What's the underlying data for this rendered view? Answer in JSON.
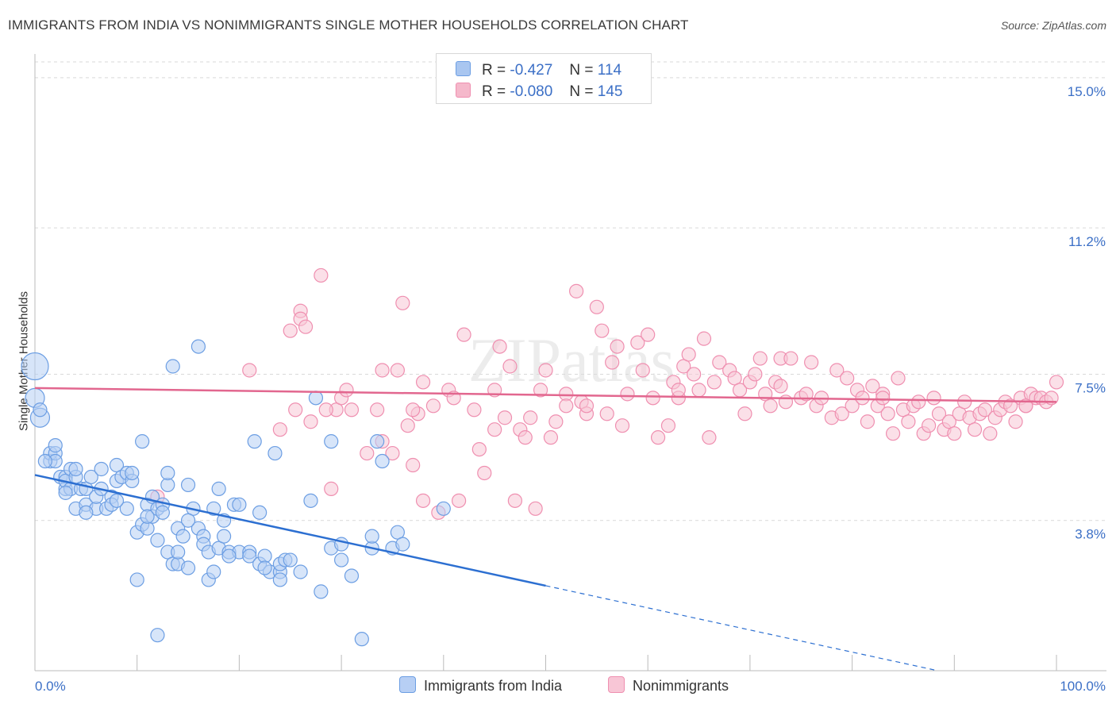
{
  "title": "IMMIGRANTS FROM INDIA VS NONIMMIGRANTS SINGLE MOTHER HOUSEHOLDS CORRELATION CHART",
  "source": "Source: ZipAtlas.com",
  "watermark": "ZIPatlas",
  "legend_stats": [
    {
      "r_label": "R =",
      "r_value": "-0.427",
      "n_label": "N =",
      "n_value": "114",
      "color": "#a9c6f0"
    },
    {
      "r_label": "R =",
      "r_value": "-0.080",
      "n_label": "N =",
      "n_value": "145",
      "color": "#f5b8cb"
    }
  ],
  "colors": {
    "india": "#6c9ee3",
    "india_fill": "#b7cff4",
    "india_line": "#2c6fd1",
    "nonimm": "#ef8fb0",
    "nonimm_fill": "#f8c6d6",
    "nonimm_line": "#e2678f",
    "axis_text": "#3b6fc6",
    "grid": "#d9d9d9"
  },
  "chart_data": {
    "type": "scatter",
    "title": "IMMIGRANTS FROM INDIA VS NONIMMIGRANTS SINGLE MOTHER HOUSEHOLDS CORRELATION CHART",
    "xlabel": "",
    "ylabel": "Single Mother Households",
    "x_tick_labels": [
      "0.0%",
      "100.0%"
    ],
    "y_tick_labels": [
      "3.8%",
      "7.5%",
      "11.2%",
      "15.0%"
    ],
    "y_ticks": [
      3.8,
      7.5,
      11.2,
      15.0
    ],
    "xlim": [
      0,
      100
    ],
    "ylim": [
      0,
      15.4
    ],
    "grid": "horizontal dashed",
    "legend_position": "bottom-center",
    "series": [
      {
        "name": "Immigrants from India",
        "trend": {
          "x0": 0,
          "y0": 4.95,
          "x1": 50,
          "y1": 2.15,
          "dashed_to_x": 100,
          "dashed_to_y": -0.65
        },
        "points": [
          [
            0,
            7.7
          ],
          [
            0,
            6.9
          ],
          [
            0.5,
            6.4
          ],
          [
            0.5,
            6.6
          ],
          [
            1.5,
            5.3
          ],
          [
            1.5,
            5.5
          ],
          [
            2,
            5.5
          ],
          [
            2,
            5.7
          ],
          [
            2,
            5.3
          ],
          [
            2.5,
            4.9
          ],
          [
            3,
            4.9
          ],
          [
            3,
            4.6
          ],
          [
            3,
            4.8
          ],
          [
            3.5,
            5.1
          ],
          [
            3.5,
            4.6
          ],
          [
            4,
            4.9
          ],
          [
            4,
            5.1
          ],
          [
            4,
            4.1
          ],
          [
            4.5,
            4.6
          ],
          [
            5,
            4.2
          ],
          [
            5,
            4.6
          ],
          [
            5.5,
            4.9
          ],
          [
            6,
            4.1
          ],
          [
            6,
            4.4
          ],
          [
            6.5,
            4.6
          ],
          [
            6.5,
            5.1
          ],
          [
            7,
            4.1
          ],
          [
            7.5,
            4.4
          ],
          [
            7.5,
            4.2
          ],
          [
            8,
            4.8
          ],
          [
            8,
            5.2
          ],
          [
            8.5,
            4.9
          ],
          [
            9,
            4.1
          ],
          [
            9,
            5.0
          ],
          [
            9.5,
            4.8
          ],
          [
            9.5,
            5.0
          ],
          [
            10,
            3.5
          ],
          [
            10,
            2.3
          ],
          [
            10.5,
            5.8
          ],
          [
            10.5,
            3.7
          ],
          [
            11,
            3.6
          ],
          [
            11,
            4.2
          ],
          [
            11.5,
            3.9
          ],
          [
            11.5,
            4.4
          ],
          [
            12,
            4.1
          ],
          [
            12,
            3.3
          ],
          [
            12,
            0.9
          ],
          [
            12.5,
            4.2
          ],
          [
            12.5,
            4.0
          ],
          [
            13,
            4.7
          ],
          [
            13,
            5.0
          ],
          [
            13,
            3.0
          ],
          [
            13.5,
            7.7
          ],
          [
            13.5,
            2.7
          ],
          [
            14,
            2.7
          ],
          [
            14,
            3.6
          ],
          [
            14,
            3.0
          ],
          [
            14.5,
            3.4
          ],
          [
            15,
            4.7
          ],
          [
            15,
            2.6
          ],
          [
            15.5,
            4.1
          ],
          [
            16,
            8.2
          ],
          [
            16,
            3.6
          ],
          [
            16.5,
            3.4
          ],
          [
            16.5,
            3.2
          ],
          [
            17,
            3.0
          ],
          [
            17,
            2.3
          ],
          [
            17.5,
            2.5
          ],
          [
            17.5,
            4.1
          ],
          [
            18,
            4.6
          ],
          [
            18,
            3.1
          ],
          [
            18.5,
            3.8
          ],
          [
            18.5,
            3.4
          ],
          [
            19,
            3.0
          ],
          [
            19.5,
            4.2
          ],
          [
            20,
            3.0
          ],
          [
            20,
            4.2
          ],
          [
            21,
            3.0
          ],
          [
            21,
            2.9
          ],
          [
            21.5,
            5.8
          ],
          [
            22,
            4.0
          ],
          [
            22,
            2.7
          ],
          [
            22.5,
            2.9
          ],
          [
            23,
            2.5
          ],
          [
            23.5,
            5.5
          ],
          [
            24,
            2.5
          ],
          [
            24,
            2.7
          ],
          [
            24,
            2.3
          ],
          [
            24.5,
            2.8
          ],
          [
            25,
            2.8
          ],
          [
            27,
            4.3
          ],
          [
            27.5,
            6.9
          ],
          [
            28,
            2.0
          ],
          [
            29,
            5.8
          ],
          [
            29,
            3.1
          ],
          [
            30,
            3.2
          ],
          [
            30,
            2.8
          ],
          [
            31,
            2.4
          ],
          [
            32,
            0.8
          ],
          [
            33,
            3.1
          ],
          [
            33,
            3.4
          ],
          [
            33.5,
            5.8
          ],
          [
            34,
            5.3
          ],
          [
            35,
            3.1
          ],
          [
            35.5,
            3.5
          ],
          [
            36,
            3.2
          ],
          [
            40,
            4.1
          ],
          [
            1,
            5.3
          ],
          [
            3,
            4.5
          ],
          [
            5,
            4.0
          ],
          [
            8,
            4.3
          ],
          [
            11,
            3.9
          ],
          [
            15,
            3.8
          ],
          [
            19,
            2.9
          ],
          [
            22.5,
            2.6
          ],
          [
            26,
            2.5
          ]
        ]
      },
      {
        "name": "Nonimmigrants",
        "trend": {
          "x0": 0,
          "y0": 7.15,
          "x1": 100,
          "y1": 6.8
        },
        "points": [
          [
            12,
            4.4
          ],
          [
            21,
            7.6
          ],
          [
            24,
            6.1
          ],
          [
            25,
            8.6
          ],
          [
            25.5,
            6.6
          ],
          [
            26,
            9.1
          ],
          [
            26,
            8.9
          ],
          [
            26.5,
            8.7
          ],
          [
            27,
            6.3
          ],
          [
            28,
            10.0
          ],
          [
            29,
            4.6
          ],
          [
            29.5,
            6.6
          ],
          [
            30,
            6.9
          ],
          [
            30.5,
            7.1
          ],
          [
            31,
            6.6
          ],
          [
            32.5,
            5.5
          ],
          [
            33.5,
            6.6
          ],
          [
            34,
            5.8
          ],
          [
            34,
            7.6
          ],
          [
            35,
            5.5
          ],
          [
            35.5,
            7.6
          ],
          [
            36,
            9.3
          ],
          [
            36.5,
            6.2
          ],
          [
            37,
            5.2
          ],
          [
            37.5,
            6.5
          ],
          [
            38,
            4.3
          ],
          [
            38,
            7.3
          ],
          [
            39,
            6.7
          ],
          [
            39.5,
            4.0
          ],
          [
            40.5,
            7.1
          ],
          [
            41,
            6.9
          ],
          [
            41.5,
            4.3
          ],
          [
            42,
            8.5
          ],
          [
            43,
            6.6
          ],
          [
            43.5,
            5.6
          ],
          [
            44,
            5.0
          ],
          [
            45,
            6.1
          ],
          [
            45.5,
            8.2
          ],
          [
            46,
            6.4
          ],
          [
            46.5,
            7.7
          ],
          [
            47,
            4.3
          ],
          [
            47.5,
            6.1
          ],
          [
            48,
            5.9
          ],
          [
            48.5,
            6.4
          ],
          [
            49,
            4.1
          ],
          [
            49.5,
            7.1
          ],
          [
            50,
            7.6
          ],
          [
            50.5,
            5.9
          ],
          [
            51,
            6.3
          ],
          [
            52,
            7.0
          ],
          [
            52,
            6.7
          ],
          [
            53,
            9.6
          ],
          [
            53.5,
            6.8
          ],
          [
            54,
            6.5
          ],
          [
            55,
            9.2
          ],
          [
            55.5,
            8.6
          ],
          [
            56,
            6.5
          ],
          [
            56.5,
            7.8
          ],
          [
            57,
            8.2
          ],
          [
            57.5,
            6.2
          ],
          [
            58,
            7.0
          ],
          [
            59,
            8.3
          ],
          [
            59.5,
            7.6
          ],
          [
            60,
            8.5
          ],
          [
            60.5,
            6.9
          ],
          [
            61,
            5.9
          ],
          [
            62,
            6.2
          ],
          [
            62.5,
            7.3
          ],
          [
            63,
            6.9
          ],
          [
            63.5,
            7.7
          ],
          [
            64,
            8.0
          ],
          [
            64.5,
            7.5
          ],
          [
            65,
            7.1
          ],
          [
            65.5,
            8.4
          ],
          [
            66,
            5.9
          ],
          [
            66.5,
            7.3
          ],
          [
            67,
            7.8
          ],
          [
            68,
            7.6
          ],
          [
            68.5,
            7.4
          ],
          [
            69,
            7.1
          ],
          [
            69.5,
            6.5
          ],
          [
            70,
            7.3
          ],
          [
            70.5,
            7.5
          ],
          [
            71,
            7.9
          ],
          [
            71.5,
            7.0
          ],
          [
            72,
            6.7
          ],
          [
            72.5,
            7.3
          ],
          [
            73,
            7.9
          ],
          [
            73.5,
            6.8
          ],
          [
            74,
            7.9
          ],
          [
            75,
            6.9
          ],
          [
            75.5,
            7.0
          ],
          [
            76,
            7.8
          ],
          [
            76.5,
            6.7
          ],
          [
            77,
            6.9
          ],
          [
            78,
            6.4
          ],
          [
            78.5,
            7.6
          ],
          [
            79,
            6.5
          ],
          [
            79.5,
            7.4
          ],
          [
            80,
            6.7
          ],
          [
            80.5,
            7.1
          ],
          [
            81,
            6.9
          ],
          [
            81.5,
            6.3
          ],
          [
            82,
            7.2
          ],
          [
            82.5,
            6.7
          ],
          [
            83,
            7.0
          ],
          [
            83.5,
            6.5
          ],
          [
            84,
            6.0
          ],
          [
            84.5,
            7.4
          ],
          [
            85,
            6.6
          ],
          [
            85.5,
            6.3
          ],
          [
            86,
            6.7
          ],
          [
            86.5,
            6.8
          ],
          [
            87,
            6.0
          ],
          [
            87.5,
            6.2
          ],
          [
            88,
            6.9
          ],
          [
            88.5,
            6.5
          ],
          [
            89,
            6.1
          ],
          [
            89.5,
            6.3
          ],
          [
            90,
            6.0
          ],
          [
            90.5,
            6.5
          ],
          [
            91,
            6.8
          ],
          [
            91.5,
            6.4
          ],
          [
            92,
            6.1
          ],
          [
            92.5,
            6.5
          ],
          [
            93,
            6.6
          ],
          [
            93.5,
            6.0
          ],
          [
            94,
            6.4
          ],
          [
            94.5,
            6.6
          ],
          [
            95,
            6.8
          ],
          [
            95.5,
            6.7
          ],
          [
            96,
            6.3
          ],
          [
            96.5,
            6.9
          ],
          [
            97,
            6.7
          ],
          [
            97.5,
            7.0
          ],
          [
            98,
            6.9
          ],
          [
            98.5,
            6.9
          ],
          [
            99,
            6.8
          ],
          [
            99.5,
            6.9
          ],
          [
            100,
            7.3
          ],
          [
            28.5,
            6.6
          ],
          [
            37,
            6.6
          ],
          [
            45,
            7.1
          ],
          [
            54,
            6.7
          ],
          [
            63,
            7.1
          ],
          [
            73,
            7.2
          ],
          [
            83,
            6.9
          ],
          [
            97,
            6.7
          ]
        ]
      }
    ]
  }
}
